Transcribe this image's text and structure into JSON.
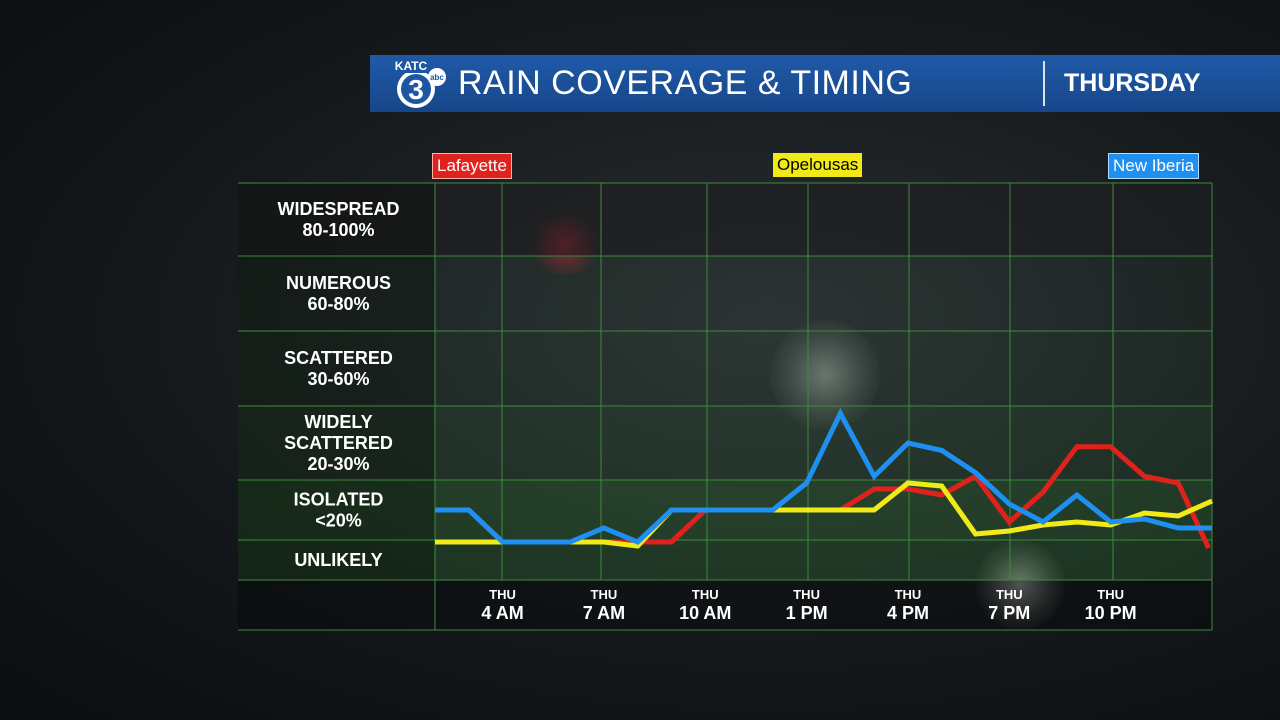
{
  "header": {
    "logo_text": "KATC",
    "logo_number": "3",
    "logo_network": "abc",
    "title": "RAIN COVERAGE & TIMING",
    "day": "THURSDAY"
  },
  "colors": {
    "header_bg": "#1d56a3",
    "grid": "#3e8a3e",
    "lafayette": "#e0221c",
    "opelousas": "#f2ea16",
    "new_iberia": "#1e90f2"
  },
  "chart_data": {
    "type": "line",
    "title": "RAIN COVERAGE & TIMING",
    "ylabel": "",
    "xlabel": "",
    "y_categories": [
      {
        "label": "UNLIKELY",
        "lines": [
          "UNLIKELY"
        ]
      },
      {
        "label": "ISOLATED <20%",
        "lines": [
          "ISOLATED",
          "<20%"
        ]
      },
      {
        "label": "WIDELY SCATTERED 20-30%",
        "lines": [
          "WIDELY",
          "SCATTERED",
          "20-30%"
        ]
      },
      {
        "label": "SCATTERED 30-60%",
        "lines": [
          "SCATTERED",
          "30-60%"
        ]
      },
      {
        "label": "NUMEROUS 60-80%",
        "lines": [
          "NUMEROUS",
          "60-80%"
        ]
      },
      {
        "label": "WIDESPREAD 80-100%",
        "lines": [
          "WIDESPREAD",
          "80-100%"
        ]
      }
    ],
    "x_ticks": [
      {
        "hour": 4,
        "day": "THU",
        "time": "4 AM"
      },
      {
        "hour": 7,
        "day": "THU",
        "time": "7 AM"
      },
      {
        "hour": 10,
        "day": "THU",
        "time": "10 AM"
      },
      {
        "hour": 13,
        "day": "THU",
        "time": "1 PM"
      },
      {
        "hour": 16,
        "day": "THU",
        "time": "4 PM"
      },
      {
        "hour": 19,
        "day": "THU",
        "time": "7 PM"
      },
      {
        "hour": 22,
        "day": "THU",
        "time": "10 PM"
      }
    ],
    "x_range": [
      2,
      25
    ],
    "y_range": [
      0,
      6
    ],
    "grid": true,
    "legend": "top",
    "series": [
      {
        "name": "Lafayette",
        "color": "#e0221c",
        "points": [
          [
            2,
            1.5
          ],
          [
            3,
            1.5
          ],
          [
            4,
            0.95
          ],
          [
            5,
            0.95
          ],
          [
            6,
            0.95
          ],
          [
            7,
            0.95
          ],
          [
            8,
            0.95
          ],
          [
            9,
            0.95
          ],
          [
            10,
            1.5
          ],
          [
            11,
            1.5
          ],
          [
            12,
            1.5
          ],
          [
            13,
            1.5
          ],
          [
            14,
            1.5
          ],
          [
            15,
            1.85
          ],
          [
            16,
            1.85
          ],
          [
            17,
            1.75
          ],
          [
            18,
            2.05
          ],
          [
            19,
            1.3
          ],
          [
            20,
            1.8
          ],
          [
            21,
            2.45
          ],
          [
            22,
            2.45
          ],
          [
            23,
            2.05
          ],
          [
            24,
            1.95
          ],
          [
            24.9,
            0.8
          ]
        ]
      },
      {
        "name": "Opelousas",
        "color": "#f2ea16",
        "points": [
          [
            2,
            0.95
          ],
          [
            3,
            0.95
          ],
          [
            4,
            0.95
          ],
          [
            5,
            0.95
          ],
          [
            6,
            0.95
          ],
          [
            7,
            0.95
          ],
          [
            8,
            0.85
          ],
          [
            9,
            1.5
          ],
          [
            10,
            1.5
          ],
          [
            11,
            1.5
          ],
          [
            12,
            1.5
          ],
          [
            13,
            1.5
          ],
          [
            14,
            1.5
          ],
          [
            15,
            1.5
          ],
          [
            16,
            1.95
          ],
          [
            17,
            1.9
          ],
          [
            18,
            1.1
          ],
          [
            19,
            1.15
          ],
          [
            20,
            1.25
          ],
          [
            21,
            1.3
          ],
          [
            22,
            1.25
          ],
          [
            23,
            1.45
          ],
          [
            24,
            1.4
          ],
          [
            25,
            1.65
          ]
        ]
      },
      {
        "name": "New Iberia",
        "color": "#1e90f2",
        "points": [
          [
            2,
            1.5
          ],
          [
            3,
            1.5
          ],
          [
            4,
            0.95
          ],
          [
            5,
            0.95
          ],
          [
            6,
            0.95
          ],
          [
            7,
            1.2
          ],
          [
            8,
            0.95
          ],
          [
            9,
            1.5
          ],
          [
            10,
            1.5
          ],
          [
            11,
            1.5
          ],
          [
            12,
            1.5
          ],
          [
            13,
            1.95
          ],
          [
            14,
            2.9
          ],
          [
            15,
            2.05
          ],
          [
            16,
            2.5
          ],
          [
            17,
            2.4
          ],
          [
            18,
            2.1
          ],
          [
            19,
            1.6
          ],
          [
            20,
            1.3
          ],
          [
            21,
            1.75
          ],
          [
            22,
            1.3
          ],
          [
            23,
            1.35
          ],
          [
            24,
            1.2
          ],
          [
            25,
            1.2
          ]
        ]
      }
    ]
  }
}
